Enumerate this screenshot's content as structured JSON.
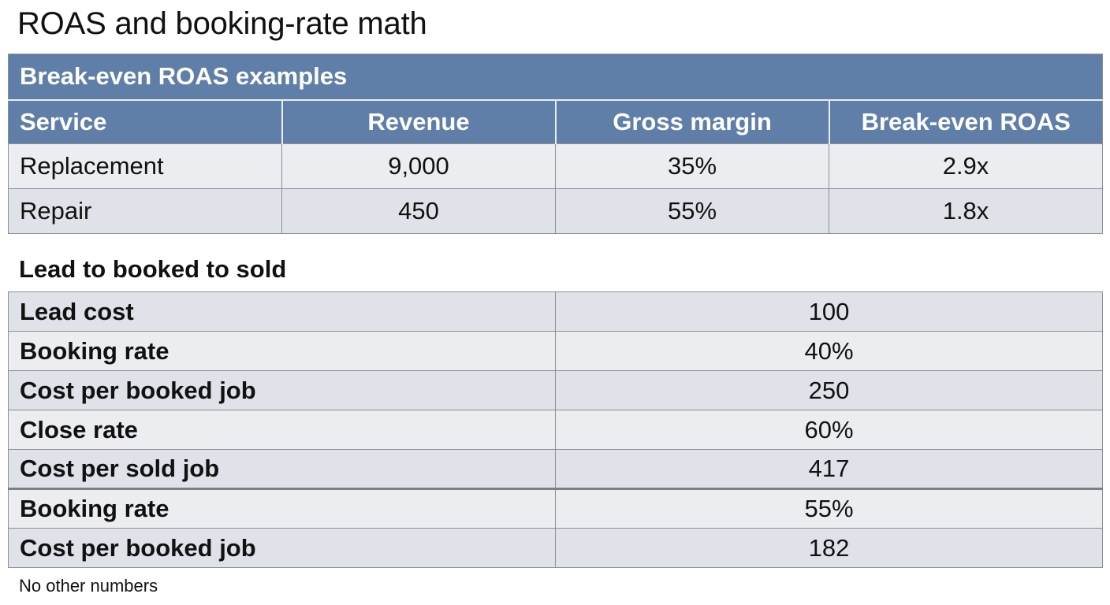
{
  "page": {
    "title": "ROAS and booking-rate math",
    "footnote": "No other numbers"
  },
  "break_even_table": {
    "caption": "Break-even ROAS examples",
    "columns": [
      "Service",
      "Revenue",
      "Gross margin",
      "Break-even ROAS"
    ],
    "rows": [
      [
        "Replacement",
        "9,000",
        "35%",
        "2.9x"
      ],
      [
        "Repair",
        "450",
        "55%",
        "1.8x"
      ]
    ]
  },
  "funnel": {
    "heading": "Lead to booked to sold",
    "rows": [
      {
        "label": "Lead cost",
        "value": "100"
      },
      {
        "label": "Booking rate",
        "value": "40%"
      },
      {
        "label": "Cost per booked job",
        "value": "250"
      },
      {
        "label": "Close rate",
        "value": "60%"
      },
      {
        "label": "Cost per sold job",
        "value": "417"
      },
      {
        "label": "Booking rate",
        "value": "55%"
      },
      {
        "label": "Cost per booked job",
        "value": "182"
      }
    ]
  },
  "colors": {
    "header_blue": "#5f7fa9",
    "row_light": "#ebedf1",
    "row_dark": "#dfe2e8",
    "border": "#8a8f96"
  }
}
